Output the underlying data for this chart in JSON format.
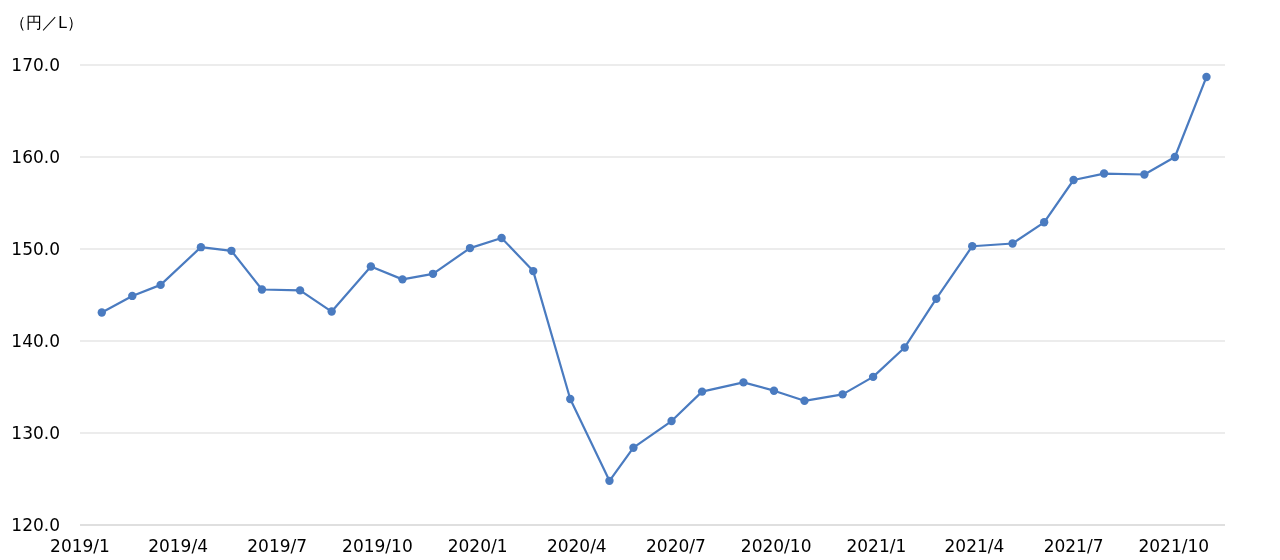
{
  "chart_data": {
    "type": "line",
    "ylabel": "（円／L）",
    "x": [
      "2019-01-21",
      "2019-02-18",
      "2019-03-16",
      "2019-04-22",
      "2019-05-20",
      "2019-06-17",
      "2019-07-22",
      "2019-08-20",
      "2019-09-25",
      "2019-10-24",
      "2019-11-21",
      "2019-12-25",
      "2020-01-23",
      "2020-02-21",
      "2020-03-26",
      "2020-05-01",
      "2020-05-23",
      "2020-06-27",
      "2020-07-25",
      "2020-09-01",
      "2020-09-29",
      "2020-10-27",
      "2020-12-01",
      "2020-12-29",
      "2021-01-27",
      "2021-02-25",
      "2021-03-30",
      "2021-05-06",
      "2021-06-04",
      "2021-07-01",
      "2021-07-29",
      "2021-09-04",
      "2021-10-02",
      "2021-10-31"
    ],
    "series": [
      {
        "color": "#4a7bc0",
        "values": [
          143.1,
          144.9,
          146.1,
          150.2,
          149.8,
          145.6,
          145.5,
          143.2,
          148.1,
          146.7,
          147.3,
          150.1,
          151.2,
          147.6,
          133.7,
          124.8,
          128.4,
          131.3,
          134.5,
          135.5,
          134.6,
          133.5,
          134.2,
          136.1,
          139.3,
          144.6,
          150.3,
          150.6,
          152.9,
          157.5,
          158.2,
          158.1,
          160.0,
          168.7
        ]
      }
    ],
    "xlim": [
      "2019-01-01",
      "2021-11-17"
    ],
    "xticks": [
      {
        "value": "2019-01-01",
        "label": "2019/1"
      },
      {
        "value": "2019-04-01",
        "label": "2019/4"
      },
      {
        "value": "2019-07-01",
        "label": "2019/7"
      },
      {
        "value": "2019-10-01",
        "label": "2019/10"
      },
      {
        "value": "2020-01-01",
        "label": "2020/1"
      },
      {
        "value": "2020-04-01",
        "label": "2020/4"
      },
      {
        "value": "2020-07-01",
        "label": "2020/7"
      },
      {
        "value": "2020-10-01",
        "label": "2020/10"
      },
      {
        "value": "2021-01-01",
        "label": "2021/1"
      },
      {
        "value": "2021-04-01",
        "label": "2021/4"
      },
      {
        "value": "2021-07-01",
        "label": "2021/7"
      },
      {
        "value": "2021-10-01",
        "label": "2021/10"
      }
    ],
    "ylim": [
      120,
      170
    ],
    "yticks": [
      {
        "value": 120,
        "label": "120.0"
      },
      {
        "value": 130,
        "label": "130.0"
      },
      {
        "value": 140,
        "label": "140.0"
      },
      {
        "value": 150,
        "label": "150.0"
      },
      {
        "value": 160,
        "label": "160.0"
      },
      {
        "value": 170,
        "label": "170.0"
      }
    ],
    "grid": "y",
    "marker": "circle",
    "line_style": "solid"
  }
}
